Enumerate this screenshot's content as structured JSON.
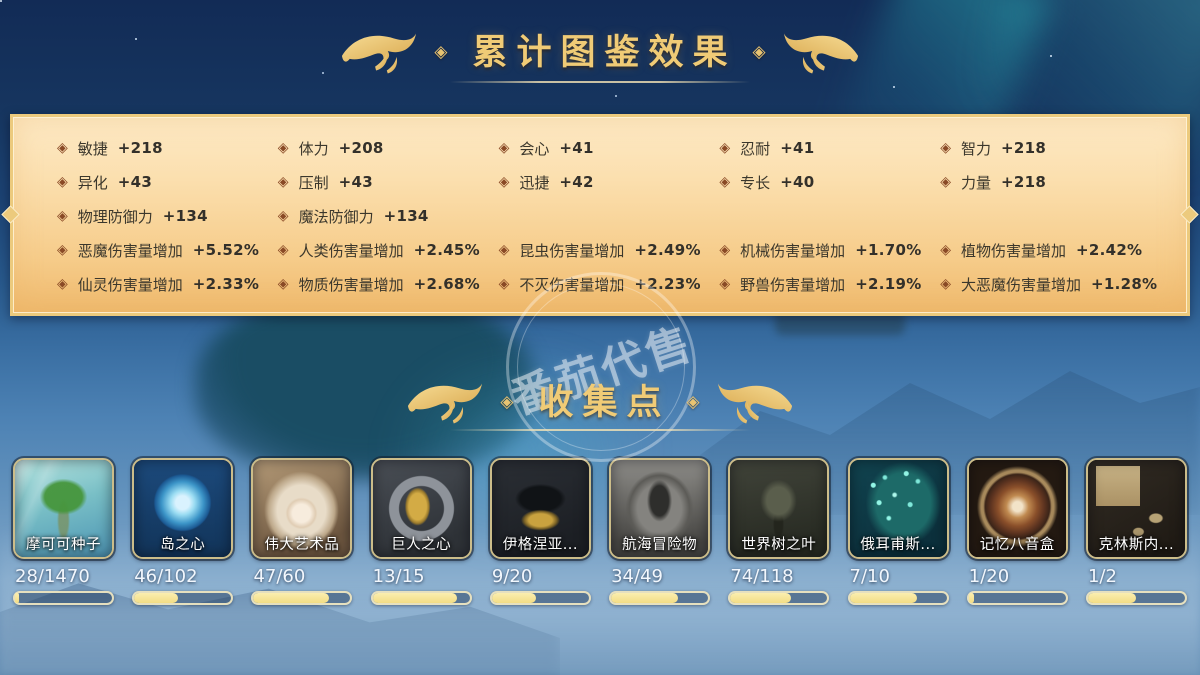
{
  "titles": {
    "effects": "累计图鉴效果",
    "collection": "收集点",
    "ornament": "◈"
  },
  "watermark": {
    "text": "番茄代售"
  },
  "stats": {
    "bullet": "◈",
    "rows": [
      [
        {
          "label": "敏捷",
          "value": "+218"
        },
        {
          "label": "体力",
          "value": "+208"
        },
        {
          "label": "会心",
          "value": "+41"
        },
        {
          "label": "忍耐",
          "value": "+41"
        },
        {
          "label": "智力",
          "value": "+218"
        }
      ],
      [
        {
          "label": "异化",
          "value": "+43"
        },
        {
          "label": "压制",
          "value": "+43"
        },
        {
          "label": "迅捷",
          "value": "+42"
        },
        {
          "label": "专长",
          "value": "+40"
        },
        {
          "label": "力量",
          "value": "+218"
        }
      ],
      [
        {
          "label": "物理防御力",
          "value": "+134"
        },
        {
          "label": "魔法防御力",
          "value": "+134"
        }
      ],
      [
        {
          "label": "恶魔伤害量增加",
          "value": "+5.52%"
        },
        {
          "label": "人类伤害量增加",
          "value": "+2.45%"
        },
        {
          "label": "昆虫伤害量增加",
          "value": "+2.49%"
        },
        {
          "label": "机械伤害量增加",
          "value": "+1.70%"
        },
        {
          "label": "植物伤害量增加",
          "value": "+2.42%"
        }
      ],
      [
        {
          "label": "仙灵伤害量增加",
          "value": "+2.33%"
        },
        {
          "label": "物质伤害量增加",
          "value": "+2.68%"
        },
        {
          "label": "不灭伤害量增加",
          "value": "+2.23%"
        },
        {
          "label": "野兽伤害量增加",
          "value": "+2.19%"
        },
        {
          "label": "大恶魔伤害量增加",
          "value": "+1.28%"
        }
      ]
    ]
  },
  "collections": [
    {
      "name": "摩可可种子",
      "count_text": "28/1470",
      "icon": "mokoko-seed"
    },
    {
      "name": "岛之心",
      "count_text": "46/102",
      "icon": "island-heart"
    },
    {
      "name": "伟大艺术品",
      "count_text": "47/60",
      "icon": "great-artwork"
    },
    {
      "name": "巨人之心",
      "count_text": "13/15",
      "icon": "giant-heart"
    },
    {
      "name": "伊格涅亚...",
      "count_text": "9/20",
      "icon": "ignea-token"
    },
    {
      "name": "航海冒险物",
      "count_text": "34/49",
      "icon": "voyage-adventure"
    },
    {
      "name": "世界树之叶",
      "count_text": "74/118",
      "icon": "world-tree-leaf"
    },
    {
      "name": "俄耳甫斯...",
      "count_text": "7/10",
      "icon": "orpheus-star"
    },
    {
      "name": "记忆八音盒",
      "count_text": "1/20",
      "icon": "memory-music-box"
    },
    {
      "name": "克林斯内...",
      "count_text": "1/2",
      "icon": "krains-map"
    }
  ],
  "colors": {
    "accent_gold": "#f0cb76",
    "panel_top": "#fdeac6",
    "panel_bottom": "#efb96c",
    "progress_fill": "#f3dd85",
    "bullet": "#8a4a26"
  }
}
